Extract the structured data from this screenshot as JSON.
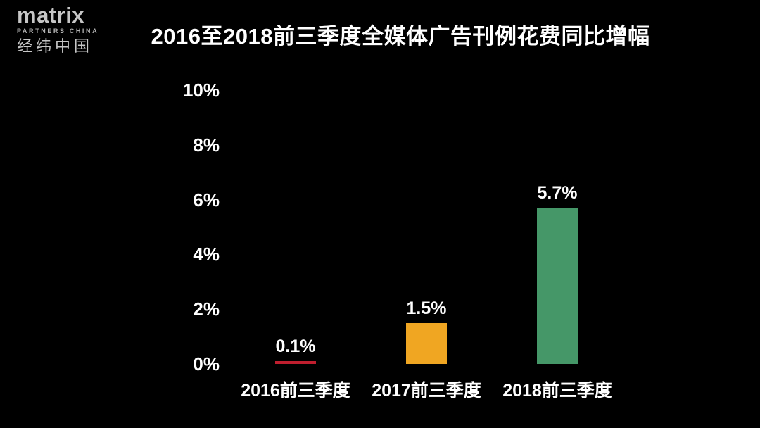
{
  "logo": {
    "brand": "matrix",
    "subtitle": "PARTNERS CHINA",
    "chinese": "经纬中国"
  },
  "title": "2016至2018前三季度全媒体广告刊例花费同比增幅",
  "colors": {
    "background": "#000000",
    "text": "#ffffff",
    "logo_gray": "#c6c6c6",
    "bar_red": "#bf1e2e",
    "bar_orange": "#f0a622",
    "bar_green": "#459768"
  },
  "chart_data": {
    "type": "bar",
    "title": "2016至2018前三季度全媒体广告刊例花费同比增幅",
    "categories": [
      "2016前三季度",
      "2017前三季度",
      "2018前三季度"
    ],
    "values": [
      0.1,
      1.5,
      5.7
    ],
    "data_labels": [
      "0.1%",
      "1.5%",
      "5.7%"
    ],
    "bar_colors": [
      "#bf1e2e",
      "#f0a622",
      "#459768"
    ],
    "yticks": [
      {
        "label": "0%",
        "value": 0
      },
      {
        "label": "2%",
        "value": 2
      },
      {
        "label": "4%",
        "value": 4
      },
      {
        "label": "6%",
        "value": 6
      },
      {
        "label": "8%",
        "value": 8
      },
      {
        "label": "10%",
        "value": 10
      }
    ],
    "ylim": [
      0,
      10
    ],
    "xlabel": "",
    "ylabel": "",
    "grid": false,
    "legend": "none"
  }
}
